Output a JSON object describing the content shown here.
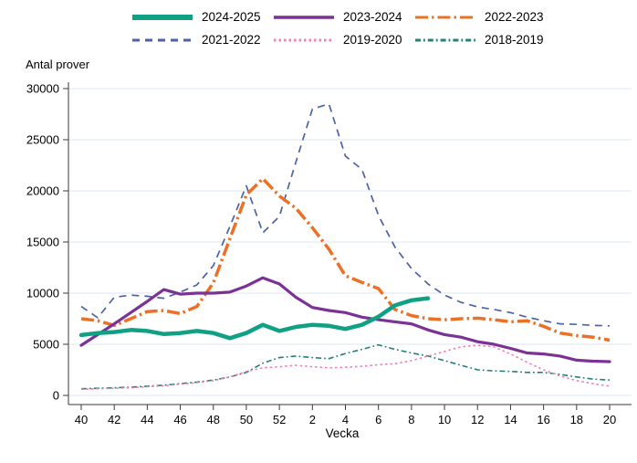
{
  "chart_data": {
    "type": "line",
    "title": "",
    "ylabel": "Antal prover",
    "xlabel": "Vecka",
    "ylim": [
      0,
      30000
    ],
    "grid": "horizontal",
    "legend_position": "top",
    "y_ticks": [
      0,
      5000,
      10000,
      15000,
      20000,
      25000,
      30000
    ],
    "x": [
      "40",
      "41",
      "42",
      "43",
      "44",
      "45",
      "46",
      "47",
      "48",
      "49",
      "50",
      "51",
      "52",
      "1",
      "2",
      "3",
      "4",
      "5",
      "6",
      "7",
      "8",
      "9",
      "10",
      "11",
      "12",
      "13",
      "14",
      "15",
      "16",
      "17",
      "18",
      "19",
      "20"
    ],
    "x_tick_labels": [
      "40",
      "42",
      "44",
      "46",
      "48",
      "50",
      "52",
      "2",
      "4",
      "6",
      "8",
      "10",
      "12",
      "14",
      "16",
      "18",
      "20"
    ],
    "axis_color": "#3a3a3a",
    "gridline_color": "#dce7f2",
    "series": [
      {
        "name": "2024-2025",
        "color": "#10a184",
        "line_style": "solid",
        "line_width": 4.5,
        "values": [
          5900,
          6100,
          6200,
          6400,
          6300,
          6000,
          6100,
          6300,
          6100,
          5600,
          6100,
          6900,
          6300,
          6700,
          6900,
          6800,
          6500,
          6900,
          7700,
          8800,
          9300,
          9500
        ]
      },
      {
        "name": "2023-2024",
        "color": "#7b3294",
        "line_style": "solid",
        "line_width": 3.2,
        "values": [
          4900,
          5950,
          7000,
          8100,
          9200,
          10350,
          9900,
          10000,
          10000,
          10100,
          10700,
          11500,
          10900,
          9600,
          8600,
          8300,
          8100,
          7650,
          7400,
          7200,
          7000,
          6400,
          5950,
          5700,
          5250,
          5000,
          4600,
          4150,
          4050,
          3850,
          3450,
          3350,
          3300
        ]
      },
      {
        "name": "2022-2023",
        "color": "#ea7125",
        "line_style": "dash-dot-long",
        "line_width": 3.5,
        "values": [
          7500,
          7300,
          6850,
          7500,
          8200,
          8300,
          8000,
          8700,
          11000,
          15300,
          19600,
          21200,
          19500,
          18300,
          16400,
          14300,
          11700,
          11050,
          10450,
          8400,
          7800,
          7500,
          7400,
          7500,
          7550,
          7400,
          7200,
          7300,
          6750,
          6100,
          5850,
          5700,
          5400
        ]
      },
      {
        "name": "2021-2022",
        "color": "#4d61a9",
        "line_style": "dashed",
        "line_width": 1.7,
        "values": [
          8700,
          7600,
          9600,
          9800,
          9700,
          9500,
          10100,
          10800,
          12700,
          16500,
          20500,
          15900,
          17500,
          22800,
          28000,
          28500,
          23400,
          22100,
          17600,
          14500,
          12400,
          10900,
          9800,
          9100,
          8650,
          8400,
          8100,
          7650,
          7300,
          7000,
          6950,
          6850,
          6800
        ]
      },
      {
        "name": "2019-2020",
        "color": "#f07fb9",
        "line_style": "dotted",
        "line_width": 1.6,
        "values": [
          600,
          650,
          700,
          750,
          850,
          950,
          1100,
          1250,
          1450,
          1800,
          2350,
          2700,
          2800,
          2950,
          2800,
          2700,
          2750,
          2850,
          3000,
          3100,
          3400,
          3850,
          4300,
          4750,
          4900,
          4750,
          4050,
          3250,
          2500,
          1900,
          1450,
          1150,
          900
        ]
      },
      {
        "name": "2018-2019",
        "color": "#267f7c",
        "line_style": "dash-dot",
        "line_width": 1.6,
        "values": [
          650,
          700,
          750,
          800,
          900,
          1000,
          1150,
          1300,
          1500,
          1800,
          2250,
          3150,
          3700,
          3850,
          3700,
          3600,
          4100,
          4500,
          4950,
          4500,
          4150,
          3850,
          3400,
          2950,
          2500,
          2400,
          2350,
          2250,
          2250,
          2050,
          1800,
          1600,
          1500
        ]
      }
    ]
  }
}
